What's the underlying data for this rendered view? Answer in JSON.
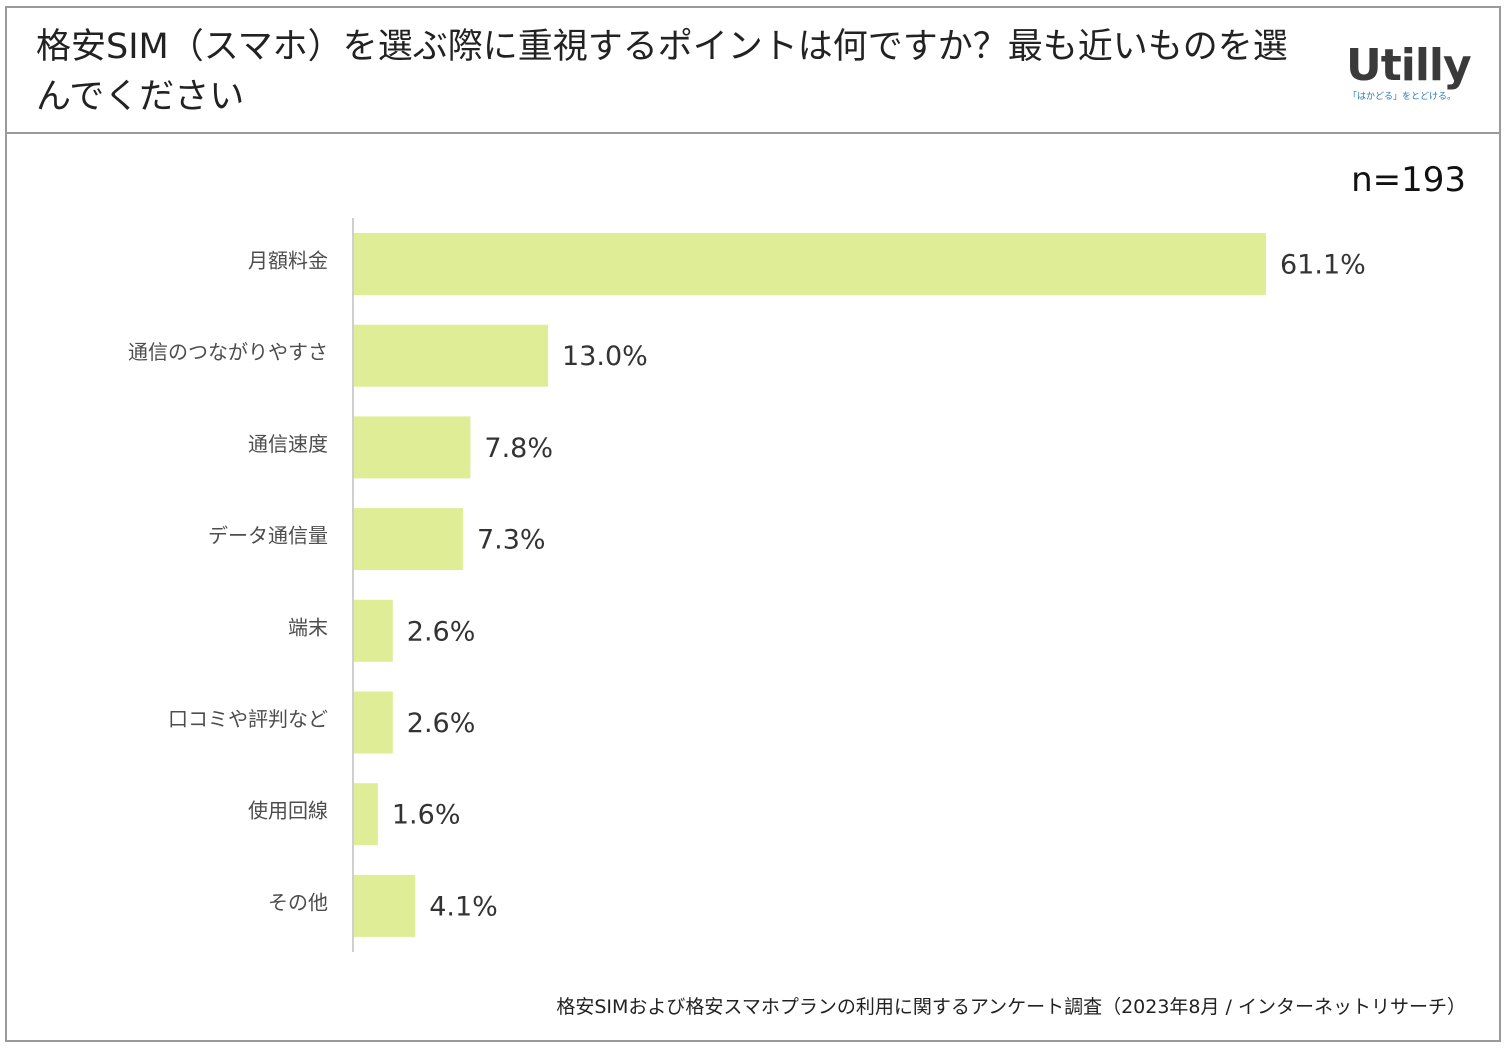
{
  "header": {
    "title": "格安SIM（スマホ）を選ぶ際に重視するポイントは何ですか？最も近いものを選んでください"
  },
  "logo": {
    "word": "Utilly",
    "tagline": "「はかどる」をとどける。"
  },
  "sample_size": "n=193",
  "footnote": "格安SIMおよび格安スマホプランの利用に関するアンケート調査（2023年8月 / インターネットリサーチ）",
  "colors": {
    "bar": "#dfed96",
    "axis": "#bfbfbf",
    "category_text": "#4d4d4d",
    "value_text": "#333333",
    "logo_text": "#3a3a3a",
    "logo_tagline": "#2a7ab8"
  },
  "chart_data": {
    "type": "bar",
    "orientation": "horizontal",
    "title": "格安SIM（スマホ）を選ぶ際に重視するポイントは何ですか？最も近いものを選んでください",
    "categories": [
      "月額料金",
      "通信のつながりやすさ",
      "通信速度",
      "データ通信量",
      "端末",
      "口コミや評判など",
      "使用回線",
      "その他"
    ],
    "values": [
      61.1,
      13.0,
      7.8,
      7.3,
      2.6,
      2.6,
      1.6,
      4.1
    ],
    "value_labels": [
      "61.1%",
      "13.0%",
      "7.8%",
      "7.3%",
      "2.6%",
      "2.6%",
      "1.6%",
      "4.1%"
    ],
    "unit": "%",
    "xlabel": "",
    "ylabel": "",
    "xlim": [
      0,
      61.1
    ],
    "grid": false,
    "legend": "none"
  }
}
